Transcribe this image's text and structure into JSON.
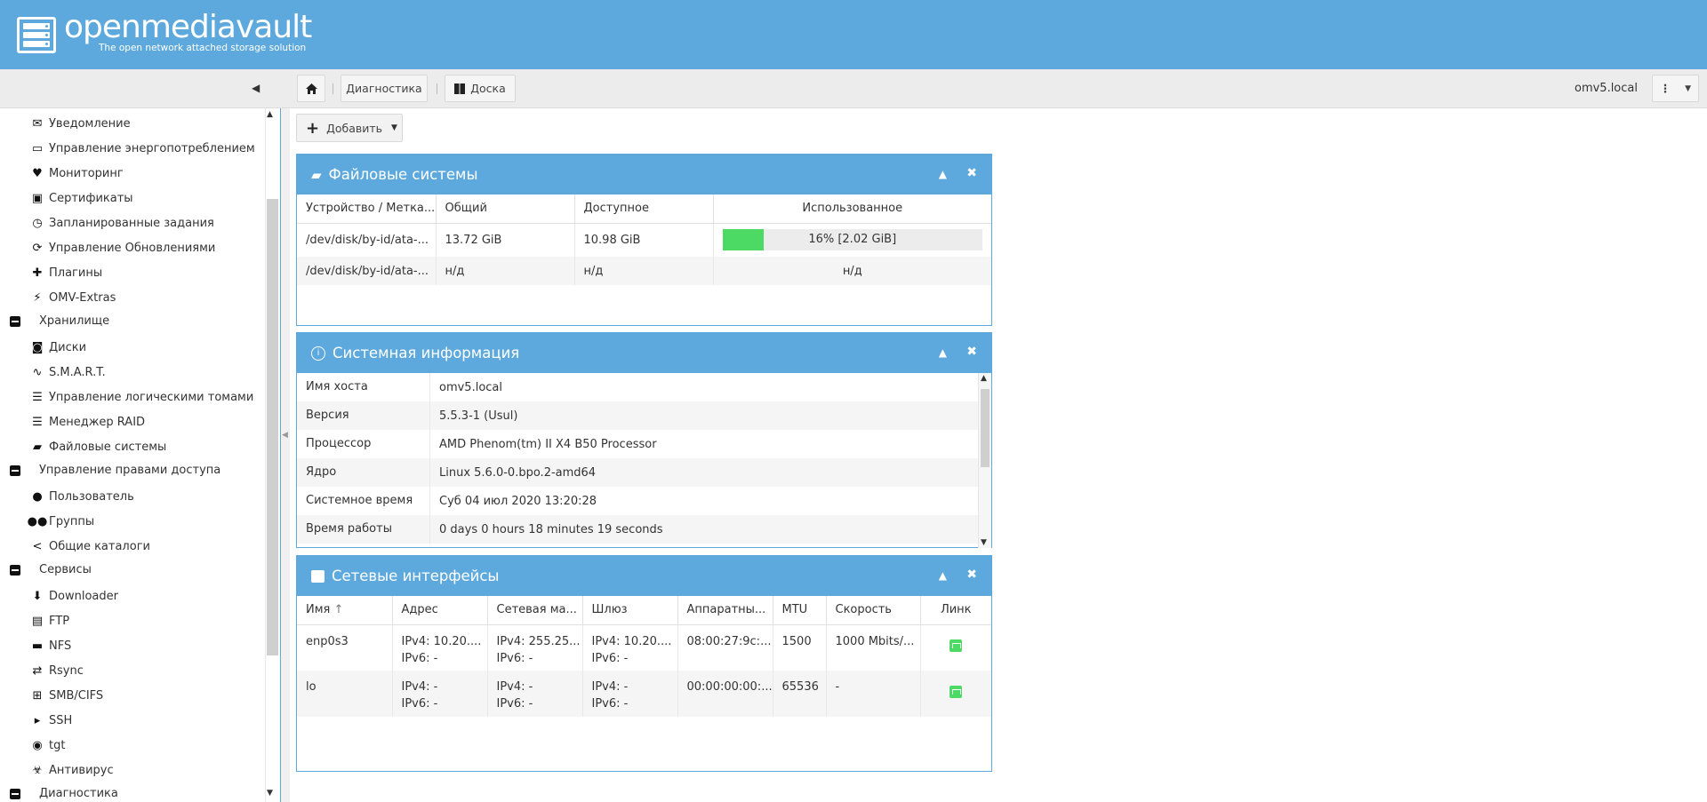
{
  "header": {
    "logo_text": "openmediavault",
    "tagline": "The open network attached storage solution"
  },
  "toolbar": {
    "home_label": "",
    "crumb1": "Диагностика",
    "crumb2": "Доска",
    "hostname": "omv5.local"
  },
  "sidebar": {
    "items": [
      {
        "label": "Уведомление",
        "icon": "envelope-icon",
        "glyph": "✉",
        "group": false
      },
      {
        "label": "Управление энергопотреблением",
        "icon": "battery-icon",
        "glyph": "▭",
        "group": false
      },
      {
        "label": "Мониторинг",
        "icon": "heartbeat-icon",
        "glyph": "♥",
        "group": false
      },
      {
        "label": "Сертификаты",
        "icon": "certificate-icon",
        "glyph": "▣",
        "group": false
      },
      {
        "label": "Запланированные задания",
        "icon": "calendar-clock-icon",
        "glyph": "◷",
        "group": false
      },
      {
        "label": "Управление Обновлениями",
        "icon": "refresh-icon",
        "glyph": "⟳",
        "group": false
      },
      {
        "label": "Плагины",
        "icon": "puzzle-icon",
        "glyph": "✚",
        "group": false
      },
      {
        "label": "OMV-Extras",
        "icon": "plug-icon",
        "glyph": "⚡",
        "group": false
      },
      {
        "label": "Хранилище",
        "icon": "collapse-icon",
        "glyph": "",
        "group": true
      },
      {
        "label": "Диски",
        "icon": "disk-icon",
        "glyph": "◙",
        "group": false
      },
      {
        "label": "S.M.A.R.T.",
        "icon": "pulse-icon",
        "glyph": "∿",
        "group": false
      },
      {
        "label": "Управление логическими томами",
        "icon": "database-icon",
        "glyph": "☰",
        "group": false
      },
      {
        "label": "Менеджер RAID",
        "icon": "raid-database-icon",
        "glyph": "☰",
        "group": false
      },
      {
        "label": "Файловые системы",
        "icon": "folders-icon",
        "glyph": "▰",
        "group": false
      },
      {
        "label": "Управление правами доступа",
        "icon": "collapse-icon",
        "glyph": "",
        "group": true
      },
      {
        "label": "Пользователь",
        "icon": "user-icon",
        "glyph": "●",
        "group": false
      },
      {
        "label": "Группы",
        "icon": "users-icon",
        "glyph": "●●",
        "group": false
      },
      {
        "label": "Общие каталоги",
        "icon": "share-icon",
        "glyph": "<",
        "group": false
      },
      {
        "label": "Сервисы",
        "icon": "collapse-icon",
        "glyph": "",
        "group": true
      },
      {
        "label": "Downloader",
        "icon": "download-box-icon",
        "glyph": "⬇",
        "group": false
      },
      {
        "label": "FTP",
        "icon": "server-icon",
        "glyph": "▤",
        "group": false
      },
      {
        "label": "NFS",
        "icon": "network-drive-icon",
        "glyph": "▬",
        "group": false
      },
      {
        "label": "Rsync",
        "icon": "sync-icon",
        "glyph": "⇄",
        "group": false
      },
      {
        "label": "SMB/CIFS",
        "icon": "windows-icon",
        "glyph": "⊞",
        "group": false
      },
      {
        "label": "SSH",
        "icon": "terminal-icon",
        "glyph": "▸",
        "group": false
      },
      {
        "label": "tgt",
        "icon": "tgt-disk-icon",
        "glyph": "◉",
        "group": false
      },
      {
        "label": "Антивирус",
        "icon": "biohazard-icon",
        "glyph": "☣",
        "group": false
      },
      {
        "label": "Диагностика",
        "icon": "collapse-icon",
        "glyph": "",
        "group": true
      }
    ]
  },
  "main": {
    "add_label": "Добавить"
  },
  "filesystems": {
    "title": "Файловые системы",
    "columns": [
      "Устройство / Метка...",
      "Общий",
      "Доступное",
      "Использованное"
    ],
    "rows": [
      {
        "device": "/dev/disk/by-id/ata-...",
        "total": "13.72 GiB",
        "available": "10.98 GiB",
        "used_label": "16% [2.02 GiB]",
        "used_fraction": 0.16
      },
      {
        "device": "/dev/disk/by-id/ata-...",
        "total": "н/д",
        "available": "н/д",
        "used_label": "н/д",
        "used_fraction": null
      }
    ]
  },
  "sysinfo": {
    "title": "Системная информация",
    "rows": [
      {
        "key": "Имя хоста",
        "value": "omv5.local"
      },
      {
        "key": "Версия",
        "value": "5.5.3-1 (Usul)"
      },
      {
        "key": "Процессор",
        "value": "AMD Phenom(tm) II X4 B50 Processor"
      },
      {
        "key": "Ядро",
        "value": "Linux 5.6.0-0.bpo.2-amd64"
      },
      {
        "key": "Системное время",
        "value": "Суб 04 июл 2020 13:20:28"
      },
      {
        "key": "Время работы",
        "value": "0 days 0 hours 18 minutes 19 seconds"
      }
    ]
  },
  "network": {
    "title": "Сетевые интерфейсы",
    "columns": [
      "Имя",
      "Адрес",
      "Сетевая ма...",
      "Шлюз",
      "Аппаратны...",
      "MTU",
      "Скорость",
      "Линк"
    ],
    "rows": [
      {
        "name": "enp0s3",
        "addr4": "IPv4: 10.20....",
        "addr6": "IPv6: -",
        "mask4": "IPv4: 255.25...",
        "mask6": "IPv6: -",
        "gw4": "IPv4: 10.20....",
        "gw6": "IPv6: -",
        "hw": "08:00:27:9c:...",
        "mtu": "1500",
        "speed": "1000 Mbits/..."
      },
      {
        "name": "lo",
        "addr4": "IPv4: -",
        "addr6": "IPv6: -",
        "mask4": "IPv4: -",
        "mask6": "IPv6: -",
        "gw4": "IPv4: -",
        "gw6": "IPv6: -",
        "hw": "00:00:00:00:...",
        "mtu": "65536",
        "speed": "-"
      }
    ]
  },
  "colors": {
    "accent": "#5da9dd",
    "progress": "#4cd964",
    "link_up": "#4cd964"
  }
}
